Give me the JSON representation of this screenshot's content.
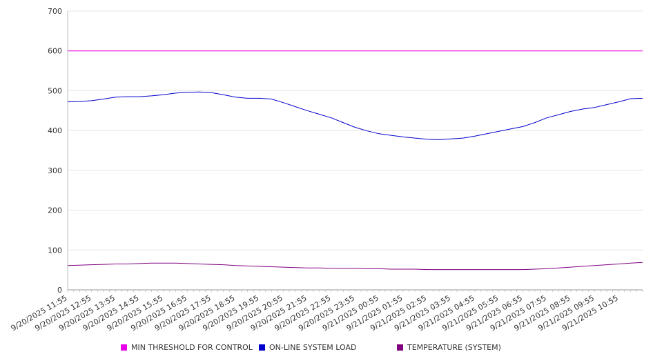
{
  "chart_data": {
    "type": "line",
    "title": "",
    "xlabel": "",
    "ylabel": "",
    "ylim": [
      0,
      700
    ],
    "y_ticks": [
      0,
      100,
      200,
      300,
      400,
      500,
      600,
      700
    ],
    "grid": "horizontal",
    "legend_position": "bottom",
    "x_tick_labels": [
      "9/20/2025 11:55",
      "9/20/2025 12:55",
      "9/20/2025 13:55",
      "9/20/2025 14:55",
      "9/20/2025 15:55",
      "9/20/2025 16:55",
      "9/20/2025 17:55",
      "9/20/2025 18:55",
      "9/20/2025 19:55",
      "9/20/2025 20:55",
      "9/20/2025 21:55",
      "9/20/2025 22:55",
      "9/20/2025 23:55",
      "9/21/2025 00:55",
      "9/21/2025 01:55",
      "9/21/2025 02:55",
      "9/21/2025 03:55",
      "9/21/2025 04:55",
      "9/21/2025 05:55",
      "9/21/2025 06:55",
      "9/21/2025 07:55",
      "9/21/2025 08:55",
      "9/21/2025 09:55",
      "9/21/2025 10:55"
    ],
    "x_hours": [
      0,
      0.5,
      1,
      1.5,
      2,
      2.5,
      3,
      3.5,
      4,
      4.5,
      5,
      5.5,
      6,
      6.5,
      7,
      7.5,
      8,
      8.5,
      9,
      9.5,
      10,
      10.5,
      11,
      11.5,
      12,
      12.5,
      13,
      13.5,
      14,
      14.5,
      15,
      15.5,
      16,
      16.5,
      17,
      17.5,
      18,
      18.5,
      19,
      19.5,
      20,
      20.5,
      21,
      21.5,
      22,
      22.5,
      23,
      23.5,
      24
    ],
    "series": [
      {
        "name": "MIN THRESHOLD FOR CONTROL",
        "color": "#e800e8",
        "values": [
          600,
          600,
          600,
          600,
          600,
          600,
          600,
          600,
          600,
          600,
          600,
          600,
          600,
          600,
          600,
          600,
          600,
          600,
          600,
          600,
          600,
          600,
          600,
          600,
          600,
          600,
          600,
          600,
          600,
          600,
          600,
          600,
          600,
          600,
          600,
          600,
          600,
          600,
          600,
          600,
          600,
          600,
          600,
          600,
          600,
          600,
          600,
          600,
          600
        ]
      },
      {
        "name": "ON-LINE SYSTEM LOAD",
        "color": "#0000cc",
        "values": [
          472,
          473,
          475,
          479,
          484,
          485,
          485,
          487,
          490,
          494,
          496,
          497,
          495,
          490,
          484,
          481,
          481,
          479,
          470,
          460,
          450,
          441,
          432,
          420,
          408,
          399,
          392,
          388,
          384,
          381,
          378,
          377,
          379,
          381,
          386,
          392,
          398,
          404,
          410,
          420,
          432,
          440,
          448,
          454,
          458,
          465,
          472,
          480,
          481
        ]
      },
      {
        "name": "TEMPERATURE (SYSTEM)",
        "color": "#800080",
        "values": [
          61,
          62,
          63,
          64,
          65,
          65,
          66,
          67,
          67,
          67,
          66,
          65,
          64,
          63,
          61,
          60,
          59,
          58,
          57,
          56,
          55,
          55,
          54,
          54,
          54,
          53,
          53,
          52,
          52,
          52,
          51,
          51,
          51,
          51,
          51,
          51,
          51,
          51,
          51,
          52,
          53,
          55,
          57,
          59,
          61,
          63,
          65,
          67,
          69
        ]
      }
    ]
  }
}
